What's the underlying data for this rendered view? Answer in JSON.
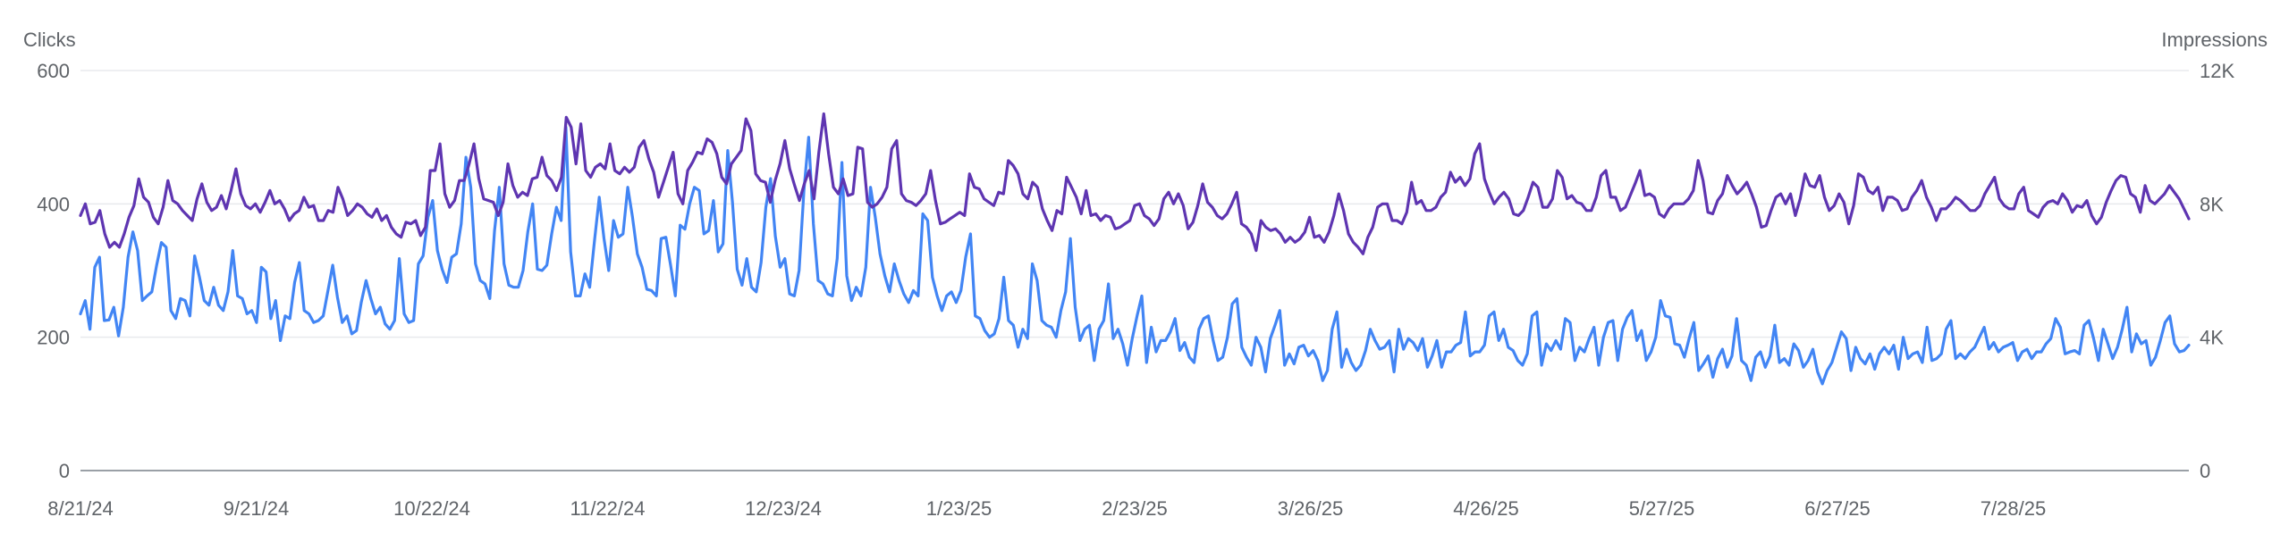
{
  "chart_data": {
    "type": "line",
    "title": "",
    "left_axis": {
      "label": "Clicks",
      "ylim": [
        0,
        600
      ],
      "ticks": [
        "0",
        "200",
        "400",
        "600"
      ]
    },
    "right_axis": {
      "label": "Impressions",
      "ylim": [
        0,
        12000
      ],
      "ticks": [
        "0",
        "4K",
        "8K",
        "12K"
      ]
    },
    "x_tick_labels": [
      "8/21/24",
      "9/21/24",
      "10/22/24",
      "11/22/24",
      "12/23/24",
      "1/23/25",
      "2/23/25",
      "3/26/25",
      "4/26/25",
      "5/27/25",
      "6/27/25",
      "7/28/25"
    ],
    "x_range": [
      "2024-08-21",
      "2025-08-28"
    ],
    "grid": true,
    "series": [
      {
        "key": "clicks",
        "axis": "left",
        "color": "#4285f4",
        "values": [
          235,
          255,
          212,
          305,
          320,
          225,
          226,
          245,
          202,
          245,
          320,
          358,
          330,
          255,
          262,
          268,
          308,
          342,
          335,
          240,
          228,
          258,
          255,
          232,
          322,
          290,
          255,
          248,
          275,
          248,
          240,
          268,
          330,
          262,
          258,
          235,
          240,
          222,
          305,
          298,
          228,
          255,
          195,
          232,
          228,
          282,
          312,
          240,
          235,
          222,
          225,
          232,
          270,
          308,
          260,
          222,
          232,
          205,
          210,
          252,
          285,
          258,
          235,
          245,
          220,
          212,
          225,
          318,
          235,
          222,
          225,
          310,
          322,
          380,
          405,
          330,
          302,
          282,
          320,
          325,
          370,
          470,
          425,
          310,
          285,
          280,
          258,
          360,
          425,
          310,
          278,
          275,
          275,
          300,
          358,
          400,
          302,
          300,
          308,
          355,
          395,
          375,
          515,
          328,
          262,
          262,
          295,
          275,
          345,
          410,
          348,
          300,
          375,
          350,
          355,
          425,
          380,
          325,
          305,
          272,
          270,
          262,
          348,
          350,
          308,
          262,
          368,
          362,
          400,
          425,
          420,
          355,
          360,
          405,
          328,
          340,
          480,
          402,
          302,
          278,
          318,
          275,
          268,
          312,
          395,
          438,
          352,
          305,
          318,
          265,
          262,
          300,
          420,
          500,
          370,
          285,
          280,
          265,
          262,
          318,
          462,
          292,
          255,
          275,
          262,
          305,
          425,
          380,
          325,
          292,
          268,
          310,
          285,
          265,
          252,
          270,
          262,
          385,
          375,
          290,
          262,
          240,
          262,
          268,
          252,
          270,
          320,
          355,
          232,
          228,
          210,
          200,
          205,
          228,
          290,
          225,
          218,
          185,
          212,
          198,
          310,
          285,
          225,
          218,
          215,
          200,
          240,
          268,
          348,
          245,
          195,
          212,
          218,
          165,
          212,
          225,
          280,
          198,
          212,
          190,
          158,
          198,
          232,
          262,
          162,
          215,
          178,
          195,
          195,
          208,
          228,
          180,
          192,
          170,
          162,
          212,
          228,
          232,
          195,
          165,
          170,
          200,
          250,
          258,
          185,
          170,
          158,
          200,
          185,
          148,
          198,
          218,
          240,
          158,
          175,
          160,
          185,
          188,
          172,
          180,
          165,
          135,
          150,
          212,
          238,
          155,
          182,
          162,
          150,
          158,
          180,
          212,
          195,
          182,
          185,
          195,
          148,
          212,
          182,
          198,
          192,
          180,
          198,
          155,
          172,
          195,
          155,
          178,
          178,
          188,
          192,
          238,
          172,
          178,
          178,
          188,
          232,
          238,
          195,
          212,
          185,
          180,
          165,
          158,
          175,
          232,
          238,
          158,
          190,
          180,
          195,
          182,
          228,
          222,
          165,
          185,
          178,
          198,
          215,
          158,
          200,
          222,
          225,
          165,
          212,
          230,
          240,
          195,
          210,
          165,
          178,
          200,
          255,
          232,
          230,
          190,
          188,
          170,
          198,
          222,
          150,
          160,
          172,
          140,
          168,
          182,
          155,
          172,
          228,
          165,
          158,
          135,
          170,
          178,
          155,
          172,
          218,
          162,
          168,
          158,
          190,
          180,
          155,
          165,
          182,
          148,
          130,
          150,
          162,
          185,
          208,
          198,
          150,
          185,
          168,
          160,
          175,
          152,
          175,
          185,
          175,
          188,
          152,
          200,
          168,
          175,
          178,
          162,
          215,
          165,
          168,
          175,
          212,
          225,
          168,
          175,
          168,
          178,
          185,
          200,
          215,
          182,
          192,
          178,
          185,
          188,
          192,
          165,
          178,
          182,
          168,
          178,
          178,
          190,
          198,
          228,
          215,
          175,
          178,
          180,
          175,
          218,
          225,
          198,
          165,
          212,
          190,
          168,
          185,
          212,
          245,
          178,
          205,
          190,
          195,
          158,
          170,
          195,
          222,
          232,
          190,
          178,
          180,
          188
        ]
      },
      {
        "key": "impressions",
        "axis": "right",
        "color": "#5e35b1",
        "values": [
          7650,
          8000,
          7400,
          7450,
          7800,
          7100,
          6700,
          6850,
          6700,
          7100,
          7600,
          7950,
          8750,
          8200,
          8050,
          7600,
          7400,
          7900,
          8700,
          8100,
          8000,
          7800,
          7650,
          7500,
          8150,
          8600,
          8050,
          7800,
          7900,
          8250,
          7850,
          8400,
          9050,
          8300,
          7950,
          7850,
          8000,
          7750,
          8050,
          8400,
          8000,
          8100,
          7850,
          7500,
          7700,
          7800,
          8200,
          7900,
          7950,
          7500,
          7500,
          7800,
          7750,
          8500,
          8150,
          7650,
          7800,
          8000,
          7900,
          7700,
          7600,
          7850,
          7500,
          7650,
          7300,
          7100,
          7000,
          7450,
          7400,
          7500,
          7050,
          7300,
          9000,
          9000,
          9800,
          8300,
          7900,
          8100,
          8700,
          8700,
          9200,
          9800,
          8750,
          8150,
          8100,
          8050,
          7650,
          8050,
          9200,
          8550,
          8200,
          8350,
          8250,
          8750,
          8800,
          9400,
          8850,
          8700,
          8400,
          8800,
          10600,
          10300,
          9200,
          10400,
          9000,
          8800,
          9100,
          9200,
          9050,
          9800,
          9000,
          8900,
          9100,
          8950,
          9100,
          9700,
          9900,
          9350,
          8950,
          8200,
          8650,
          9100,
          9550,
          8300,
          8000,
          9000,
          9250,
          9550,
          9500,
          9950,
          9850,
          9500,
          8800,
          8600,
          9200,
          9400,
          9600,
          10550,
          10200,
          8900,
          8700,
          8650,
          8050,
          8700,
          9200,
          9900,
          9050,
          8550,
          8100,
          8600,
          9000,
          8150,
          9550,
          10700,
          9500,
          8500,
          8300,
          8750,
          8250,
          8300,
          9700,
          9650,
          8050,
          7900,
          8000,
          8200,
          8500,
          9650,
          9900,
          8300,
          8100,
          8050,
          7950,
          8100,
          8300,
          9000,
          8100,
          7400,
          7450,
          7550,
          7650,
          7750,
          7650,
          8900,
          8500,
          8450,
          8150,
          8050,
          7950,
          8350,
          8300,
          9300,
          9150,
          8900,
          8300,
          8150,
          8650,
          8500,
          7850,
          7500,
          7200,
          7800,
          7700,
          8800,
          8500,
          8200,
          7700,
          8400,
          7650,
          7700,
          7500,
          7650,
          7600,
          7250,
          7300,
          7400,
          7500,
          7950,
          8000,
          7650,
          7550,
          7350,
          7550,
          8150,
          8350,
          8000,
          8300,
          7950,
          7250,
          7450,
          7950,
          8600,
          8050,
          7900,
          7650,
          7550,
          7700,
          8000,
          8350,
          7400,
          7300,
          7100,
          6600,
          7500,
          7300,
          7200,
          7250,
          7100,
          6850,
          7000,
          6850,
          6950,
          7150,
          7600,
          7000,
          7050,
          6850,
          7150,
          7650,
          8300,
          7800,
          7100,
          6850,
          6700,
          6500,
          7000,
          7300,
          7900,
          8000,
          8000,
          7500,
          7500,
          7400,
          7750,
          8650,
          8000,
          8100,
          7800,
          7800,
          7900,
          8200,
          8350,
          8950,
          8650,
          8800,
          8550,
          8750,
          9500,
          9800,
          8750,
          8350,
          8000,
          8200,
          8350,
          8150,
          7700,
          7650,
          7800,
          8200,
          8650,
          8500,
          7900,
          7900,
          8150,
          9000,
          8800,
          8150,
          8250,
          8050,
          8000,
          7800,
          7800,
          8200,
          8850,
          9000,
          8200,
          8200,
          7800,
          7900,
          8250,
          8600,
          9000,
          8250,
          8300,
          8200,
          7700,
          7600,
          7850,
          8000,
          8000,
          8000,
          8150,
          8400,
          9300,
          8700,
          7750,
          7700,
          8100,
          8300,
          8850,
          8550,
          8300,
          8450,
          8650,
          8300,
          7900,
          7300,
          7350,
          7800,
          8200,
          8300,
          8000,
          8300,
          7650,
          8150,
          8900,
          8550,
          8500,
          8850,
          8200,
          7800,
          7950,
          8300,
          8050,
          7400,
          7950,
          8900,
          8800,
          8400,
          8300,
          8500,
          7800,
          8200,
          8200,
          8100,
          7800,
          7850,
          8200,
          8400,
          8700,
          8200,
          7900,
          7500,
          7850,
          7850,
          8000,
          8200,
          8100,
          7950,
          7800,
          7800,
          7950,
          8300,
          8550,
          8800,
          8150,
          7950,
          7850,
          7850,
          8300,
          8500,
          7800,
          7700,
          7600,
          7900,
          8050,
          8100,
          8000,
          8300,
          8100,
          7750,
          7950,
          7900,
          8100,
          7650,
          7400,
          7600,
          8050,
          8400,
          8700,
          8850,
          8800,
          8300,
          8200,
          7750,
          8550,
          8100,
          8000,
          8150,
          8300,
          8550,
          8350,
          8150,
          7850,
          7550
        ]
      }
    ]
  }
}
